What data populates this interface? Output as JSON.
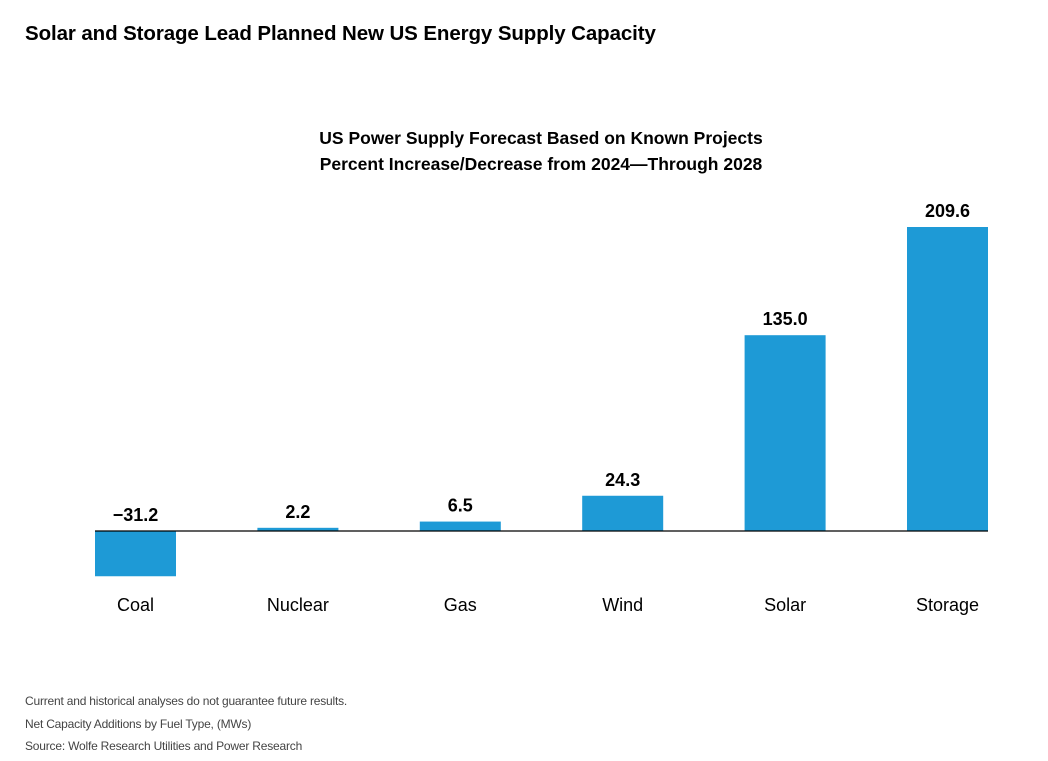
{
  "page": {
    "heading": "Solar and Storage Lead Planned New US Energy Supply Capacity"
  },
  "chart_data": {
    "type": "bar",
    "title": "US Power Supply Forecast Based on Known Projects",
    "subtitle": "Percent Increase/Decrease from 2024—Through 2028",
    "xlabel": "",
    "ylabel": "",
    "categories": [
      "Coal",
      "Nuclear",
      "Gas",
      "Wind",
      "Solar",
      "Storage"
    ],
    "values": [
      -31.2,
      2.2,
      6.5,
      24.3,
      135.0,
      209.6
    ],
    "value_labels": [
      "−31.2",
      "2.2",
      "6.5",
      "24.3",
      "135.0",
      "209.6"
    ],
    "ylim": [
      -31.2,
      209.6
    ],
    "grid": false,
    "legend": "none",
    "bar_color": "#1e9ad6",
    "axis_color": "#000000"
  },
  "footnotes": {
    "disclaimer": "Current and historical analyses do not guarantee future results.",
    "note": "Net Capacity Additions by Fuel Type, (MWs)",
    "source": "Source: Wolfe Research Utilities and Power Research"
  }
}
